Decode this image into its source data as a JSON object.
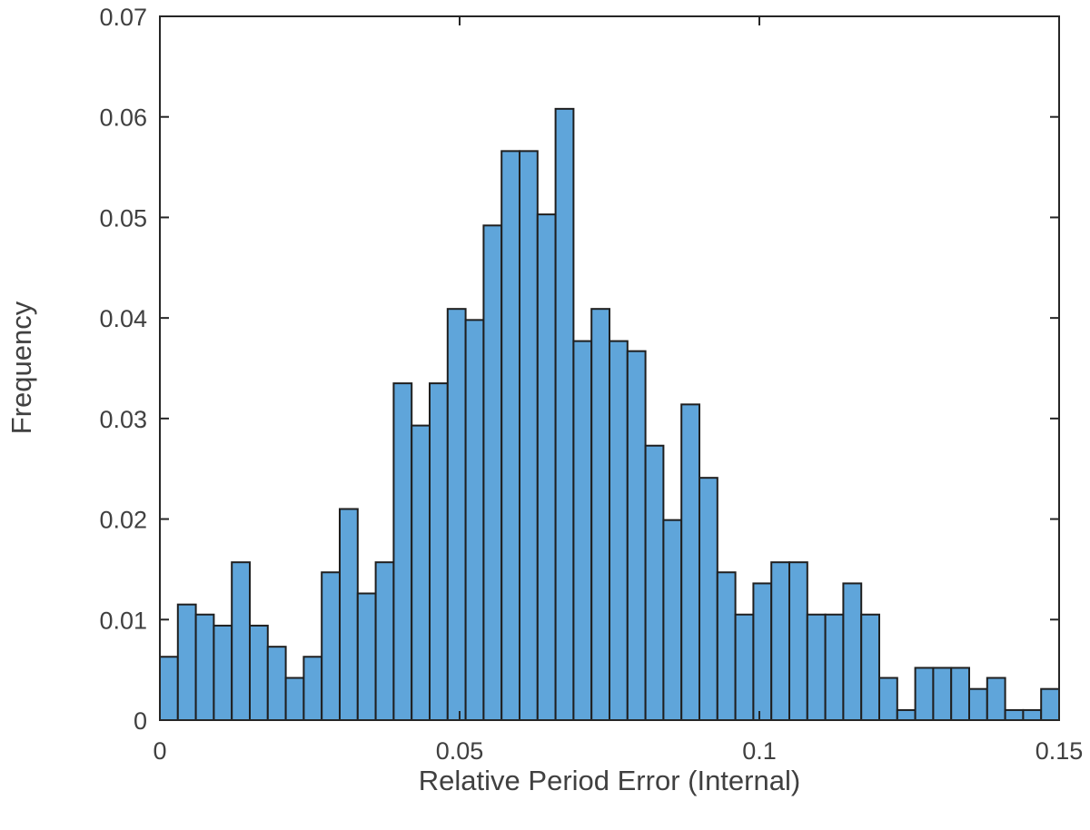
{
  "chart_data": {
    "type": "bar",
    "title": "",
    "xlabel": "Relative Period Error (Internal)",
    "ylabel": "Frequency",
    "xlim": [
      0,
      0.15
    ],
    "ylim": [
      0,
      0.07
    ],
    "xticks": [
      0,
      0.05,
      0.1,
      0.15
    ],
    "xtick_labels": [
      "0",
      "0.05",
      "0.1",
      "0.15"
    ],
    "yticks": [
      0,
      0.01,
      0.02,
      0.03,
      0.04,
      0.05,
      0.06,
      0.07
    ],
    "ytick_labels": [
      "0",
      "0.01",
      "0.02",
      "0.03",
      "0.04",
      "0.05",
      "0.06",
      "0.07"
    ],
    "grid": false,
    "bar_color": "#5fa5da",
    "edge_color": "#1f1f1f",
    "bin_edges": [
      0,
      0.003,
      0.006,
      0.009,
      0.012,
      0.015,
      0.018,
      0.021,
      0.024,
      0.027,
      0.03,
      0.033,
      0.036,
      0.039,
      0.042,
      0.045,
      0.048,
      0.051,
      0.054,
      0.057,
      0.06,
      0.063,
      0.066,
      0.069,
      0.072,
      0.075,
      0.078,
      0.081,
      0.084,
      0.087,
      0.09,
      0.093,
      0.096,
      0.099,
      0.102,
      0.105,
      0.108,
      0.111,
      0.114,
      0.117,
      0.12,
      0.123,
      0.126,
      0.129,
      0.132,
      0.135,
      0.138,
      0.141,
      0.144,
      0.147,
      0.15
    ],
    "values": [
      0.0063,
      0.0115,
      0.0105,
      0.0094,
      0.0157,
      0.0094,
      0.0073,
      0.0042,
      0.0063,
      0.0147,
      0.021,
      0.0126,
      0.0157,
      0.0335,
      0.0293,
      0.0335,
      0.0409,
      0.0398,
      0.0492,
      0.0566,
      0.0566,
      0.0503,
      0.0608,
      0.0377,
      0.0409,
      0.0377,
      0.0367,
      0.0273,
      0.0199,
      0.0314,
      0.0241,
      0.0147,
      0.0105,
      0.0136,
      0.0157,
      0.0157,
      0.0105,
      0.0105,
      0.0136,
      0.0105,
      0.0042,
      0.001,
      0.0052,
      0.0052,
      0.0052,
      0.0031,
      0.0042,
      0.001,
      0.001,
      0.0031
    ]
  }
}
